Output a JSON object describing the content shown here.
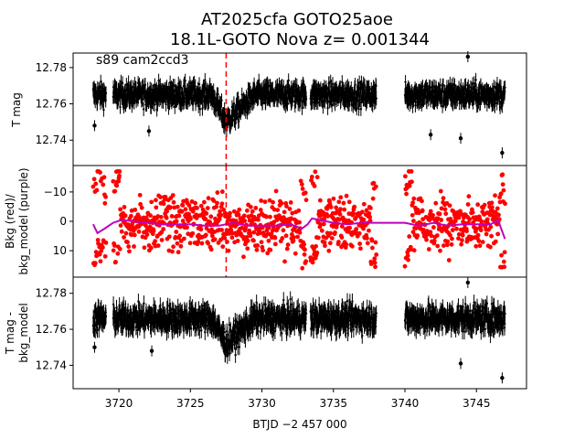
{
  "figure": {
    "title_line1": "AT2025cfa  GOTO25aoe",
    "title_line2": "18.1L-GOTO Nova z= 0.001344",
    "xlabel": "BTJD −2 457 000",
    "x_ticks": [
      "3720",
      "3725",
      "3730",
      "3735",
      "3740",
      "3745"
    ]
  },
  "colors": {
    "flux_points": "#000000",
    "background": "#ff0000",
    "bkg_model": "#bf00bf",
    "event_marker": "#ff0000"
  },
  "chart_data": [
    {
      "type": "scatter",
      "panel": "top",
      "ylabel": "T mag",
      "annotation": "s89 cam2ccd3",
      "y_inverted": true,
      "xlim": [
        3716.8,
        3748.5
      ],
      "ylim": [
        12.788,
        12.726
      ],
      "y_ticks": [
        "12.74",
        "12.76",
        "12.78"
      ],
      "event_time": 3727.5,
      "segments": [
        {
          "x_start": 3718.2,
          "x_end": 3719.1,
          "median_mag": 12.765,
          "scatter": 0.007
        },
        {
          "x_start": 3719.6,
          "x_end": 3733.1,
          "median_mag": 12.765,
          "scatter": 0.007
        },
        {
          "x_start": 3733.4,
          "x_end": 3738.0,
          "median_mag": 12.765,
          "scatter": 0.007
        },
        {
          "x_start": 3740.0,
          "x_end": 3747.0,
          "median_mag": 12.765,
          "scatter": 0.007
        }
      ],
      "bump": {
        "x_start": 3726.5,
        "x_peak": 3727.5,
        "x_end": 3729.5,
        "peak_mag": 12.75
      },
      "outliers": [
        {
          "x": 3718.3,
          "y": 12.748
        },
        {
          "x": 3722.1,
          "y": 12.745
        },
        {
          "x": 3741.8,
          "y": 12.743
        },
        {
          "x": 3743.9,
          "y": 12.741
        },
        {
          "x": 3746.8,
          "y": 12.733
        },
        {
          "x": 3744.4,
          "y": 12.786
        }
      ]
    },
    {
      "type": "scatter",
      "panel": "middle",
      "ylabel": "Bkg (red)/\nbkg_model (purple)",
      "xlim": [
        3716.8,
        3748.5
      ],
      "ylim": [
        -19,
        19
      ],
      "y_ticks": [
        "10",
        "0",
        "−10"
      ],
      "series": [
        {
          "name": "Bkg (red)",
          "color": "#ff0000"
        },
        {
          "name": "bkg_model (purple)",
          "color": "#bf00bf",
          "x": [
            3718.2,
            3718.5,
            3719.0,
            3719.6,
            3720.2,
            3721,
            3722,
            3723,
            3724,
            3725,
            3726,
            3727,
            3728,
            3729,
            3730,
            3731,
            3732,
            3732.8,
            3733.2,
            3733.5,
            3734,
            3735,
            3736,
            3737,
            3738,
            3739,
            3740,
            3741,
            3742,
            3743,
            3744,
            3745,
            3746,
            3746.5,
            3747.0
          ],
          "y": [
            1,
            4,
            2.5,
            0.5,
            -0.5,
            0,
            0.5,
            1,
            1,
            1,
            1.5,
            1.5,
            0.5,
            1.5,
            1.5,
            1.5,
            1,
            2.5,
            1,
            -1,
            -0.5,
            0.5,
            1,
            0.5,
            0.5,
            0.5,
            0.5,
            1.5,
            0.5,
            1.5,
            1,
            1,
            1,
            -0.5,
            6
          ]
        }
      ]
    },
    {
      "type": "scatter",
      "panel": "bottom",
      "ylabel": "T mag -\nbkg_model",
      "y_inverted": true,
      "xlim": [
        3716.8,
        3748.5
      ],
      "ylim": [
        12.789,
        12.727
      ],
      "y_ticks": [
        "12.74",
        "12.76",
        "12.78"
      ],
      "segments": [
        {
          "x_start": 3718.2,
          "x_end": 3719.1,
          "median_mag": 12.766,
          "scatter": 0.008
        },
        {
          "x_start": 3719.6,
          "x_end": 3733.1,
          "median_mag": 12.766,
          "scatter": 0.008
        },
        {
          "x_start": 3733.4,
          "x_end": 3738.0,
          "median_mag": 12.766,
          "scatter": 0.008
        },
        {
          "x_start": 3740.0,
          "x_end": 3747.0,
          "median_mag": 12.766,
          "scatter": 0.008
        }
      ],
      "bump": {
        "x_start": 3726.5,
        "x_peak": 3727.5,
        "x_end": 3729.5,
        "peak_mag": 12.752
      },
      "outliers": [
        {
          "x": 3722.3,
          "y": 12.748
        },
        {
          "x": 3743.9,
          "y": 12.741
        },
        {
          "x": 3746.8,
          "y": 12.733
        },
        {
          "x": 3718.3,
          "y": 12.75
        },
        {
          "x": 3744.4,
          "y": 12.786
        }
      ]
    }
  ]
}
